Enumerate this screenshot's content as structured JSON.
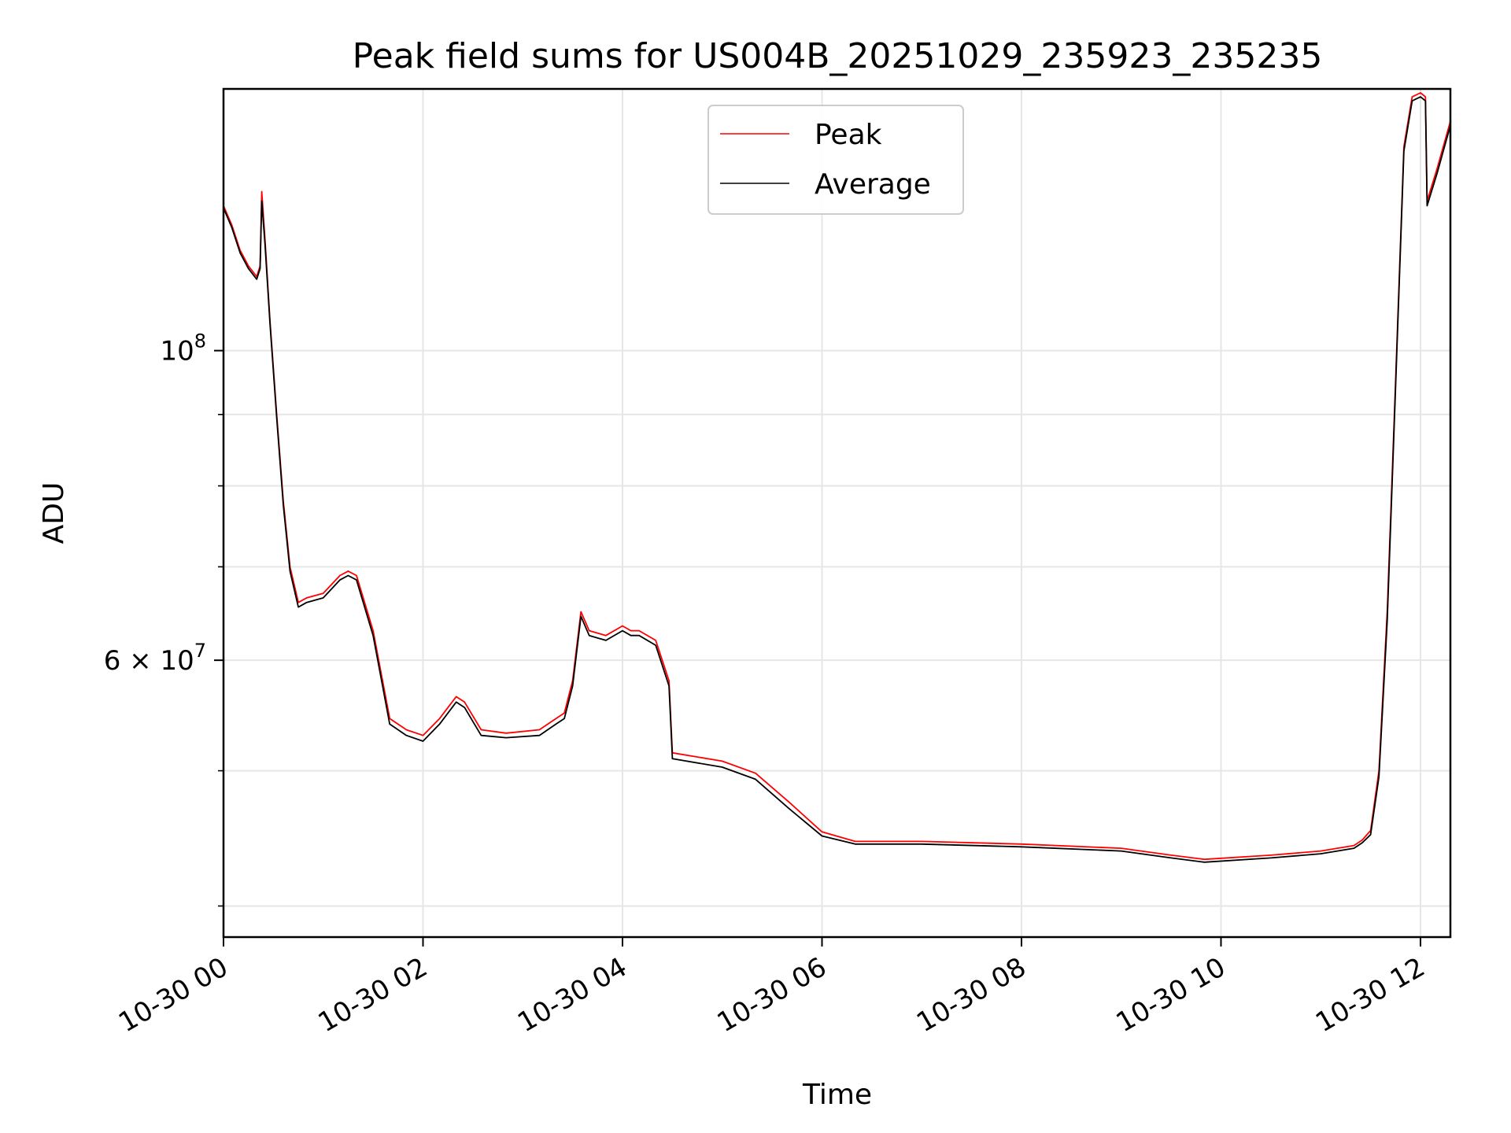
{
  "chart_data": {
    "type": "line",
    "title": "Peak field sums for US004B_20251029_235923_235235",
    "xlabel": "Time",
    "ylabel": "ADU",
    "y_scale": "log",
    "ylim": [
      38000000,
      154000000
    ],
    "xlim": [
      "2025-10-30 00:00",
      "2025-10-30 12:18"
    ],
    "grid": true,
    "legend_position": "top-center",
    "x_tick_labels": [
      "10-30 00",
      "10-30 02",
      "10-30 04",
      "10-30 06",
      "10-30 08",
      "10-30 10",
      "10-30 12"
    ],
    "x_tick_values": [
      "2025-10-30 00:00",
      "2025-10-30 02:00",
      "2025-10-30 04:00",
      "2025-10-30 06:00",
      "2025-10-30 08:00",
      "2025-10-30 10:00",
      "2025-10-30 12:00"
    ],
    "y_tick_labels": [
      {
        "value": 100000000,
        "mantissa": "",
        "base": "10",
        "exp": "8"
      },
      {
        "value": 60000000,
        "mantissa": "6 × ",
        "base": "10",
        "exp": "7"
      }
    ],
    "y_minor_ticks": [
      40000000,
      50000000,
      70000000,
      80000000,
      90000000
    ],
    "series": [
      {
        "name": "Peak",
        "color": "#ff0000",
        "x": [
          "2025-10-30 00:00",
          "2025-10-30 00:05",
          "2025-10-30 00:10",
          "2025-10-30 00:15",
          "2025-10-30 00:20",
          "2025-10-30 00:22",
          "2025-10-30 00:23",
          "2025-10-30 00:25",
          "2025-10-30 00:28",
          "2025-10-30 00:32",
          "2025-10-30 00:36",
          "2025-10-30 00:40",
          "2025-10-30 00:45",
          "2025-10-30 00:50",
          "2025-10-30 01:00",
          "2025-10-30 01:10",
          "2025-10-30 01:15",
          "2025-10-30 01:20",
          "2025-10-30 01:30",
          "2025-10-30 01:40",
          "2025-10-30 01:50",
          "2025-10-30 02:00",
          "2025-10-30 02:10",
          "2025-10-30 02:20",
          "2025-10-30 02:25",
          "2025-10-30 02:35",
          "2025-10-30 02:50",
          "2025-10-30 03:10",
          "2025-10-30 03:20",
          "2025-10-30 03:25",
          "2025-10-30 03:30",
          "2025-10-30 03:35",
          "2025-10-30 03:40",
          "2025-10-30 03:50",
          "2025-10-30 04:00",
          "2025-10-30 04:05",
          "2025-10-30 04:10",
          "2025-10-30 04:20",
          "2025-10-30 04:28",
          "2025-10-30 04:30",
          "2025-10-30 05:00",
          "2025-10-30 05:20",
          "2025-10-30 05:40",
          "2025-10-30 06:00",
          "2025-10-30 06:20",
          "2025-10-30 07:00",
          "2025-10-30 08:00",
          "2025-10-30 09:00",
          "2025-10-30 09:30",
          "2025-10-30 09:50",
          "2025-10-30 10:30",
          "2025-10-30 11:00",
          "2025-10-30 11:20",
          "2025-10-30 11:25",
          "2025-10-30 11:30",
          "2025-10-30 11:35",
          "2025-10-30 11:40",
          "2025-10-30 11:45",
          "2025-10-30 11:50",
          "2025-10-30 11:55",
          "2025-10-30 12:00",
          "2025-10-30 12:03",
          "2025-10-30 12:04",
          "2025-10-30 12:10",
          "2025-10-30 12:18"
        ],
        "y": [
          127000000,
          123000000,
          118000000,
          115000000,
          113000000,
          115000000,
          130000000,
          120000000,
          105000000,
          90000000,
          78000000,
          70000000,
          66000000,
          66500000,
          67000000,
          69000000,
          69500000,
          69000000,
          63000000,
          54500000,
          53500000,
          53000000,
          54500000,
          56500000,
          56000000,
          53500000,
          53200000,
          53500000,
          54500000,
          55000000,
          58000000,
          65000000,
          63000000,
          62500000,
          63500000,
          63000000,
          63000000,
          62000000,
          58000000,
          51500000,
          50800000,
          49800000,
          47500000,
          45200000,
          44500000,
          44500000,
          44300000,
          44000000,
          43500000,
          43200000,
          43500000,
          43800000,
          44200000,
          44600000,
          45300000,
          50000000,
          65000000,
          95000000,
          140000000,
          152000000,
          153000000,
          152000000,
          128000000,
          135000000,
          146000000
        ]
      },
      {
        "name": "Average",
        "color": "#000000",
        "x": [
          "2025-10-30 00:00",
          "2025-10-30 00:05",
          "2025-10-30 00:10",
          "2025-10-30 00:15",
          "2025-10-30 00:20",
          "2025-10-30 00:22",
          "2025-10-30 00:23",
          "2025-10-30 00:25",
          "2025-10-30 00:28",
          "2025-10-30 00:32",
          "2025-10-30 00:36",
          "2025-10-30 00:40",
          "2025-10-30 00:45",
          "2025-10-30 00:50",
          "2025-10-30 01:00",
          "2025-10-30 01:10",
          "2025-10-30 01:15",
          "2025-10-30 01:20",
          "2025-10-30 01:30",
          "2025-10-30 01:40",
          "2025-10-30 01:50",
          "2025-10-30 02:00",
          "2025-10-30 02:10",
          "2025-10-30 02:20",
          "2025-10-30 02:25",
          "2025-10-30 02:35",
          "2025-10-30 02:50",
          "2025-10-30 03:10",
          "2025-10-30 03:20",
          "2025-10-30 03:25",
          "2025-10-30 03:30",
          "2025-10-30 03:35",
          "2025-10-30 03:40",
          "2025-10-30 03:50",
          "2025-10-30 04:00",
          "2025-10-30 04:05",
          "2025-10-30 04:10",
          "2025-10-30 04:20",
          "2025-10-30 04:28",
          "2025-10-30 04:30",
          "2025-10-30 05:00",
          "2025-10-30 05:20",
          "2025-10-30 05:40",
          "2025-10-30 06:00",
          "2025-10-30 06:20",
          "2025-10-30 07:00",
          "2025-10-30 08:00",
          "2025-10-30 09:00",
          "2025-10-30 09:30",
          "2025-10-30 09:50",
          "2025-10-30 10:30",
          "2025-10-30 11:00",
          "2025-10-30 11:20",
          "2025-10-30 11:25",
          "2025-10-30 11:30",
          "2025-10-30 11:35",
          "2025-10-30 11:40",
          "2025-10-30 11:45",
          "2025-10-30 11:50",
          "2025-10-30 11:55",
          "2025-10-30 12:00",
          "2025-10-30 12:03",
          "2025-10-30 12:04",
          "2025-10-30 12:10",
          "2025-10-30 12:18"
        ],
        "y": [
          126500000,
          122500000,
          117500000,
          114500000,
          112500000,
          114500000,
          128000000,
          119000000,
          104500000,
          89500000,
          77500000,
          69500000,
          65500000,
          66000000,
          66500000,
          68500000,
          69000000,
          68500000,
          62500000,
          54000000,
          53000000,
          52500000,
          54000000,
          56000000,
          55500000,
          53000000,
          52800000,
          53000000,
          54000000,
          54500000,
          57500000,
          64500000,
          62500000,
          62000000,
          63000000,
          62500000,
          62500000,
          61500000,
          57500000,
          51000000,
          50300000,
          49300000,
          47000000,
          44900000,
          44300000,
          44300000,
          44100000,
          43800000,
          43300000,
          43000000,
          43300000,
          43600000,
          44000000,
          44400000,
          45000000,
          49500000,
          64000000,
          94000000,
          139000000,
          151000000,
          152000000,
          151000000,
          127000000,
          134000000,
          145000000
        ]
      }
    ]
  }
}
